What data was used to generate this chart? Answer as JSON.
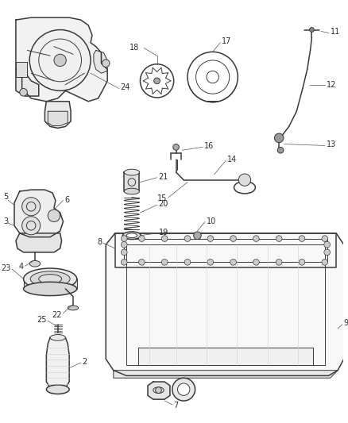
{
  "bg_color": "#ffffff",
  "line_color": "#3a3a3a",
  "label_color": "#2a2a2a",
  "fig_width": 4.39,
  "fig_height": 5.33,
  "dpi": 100,
  "lw_main": 1.1,
  "lw_thin": 0.7,
  "lw_leader": 0.5,
  "font_size": 7.0
}
